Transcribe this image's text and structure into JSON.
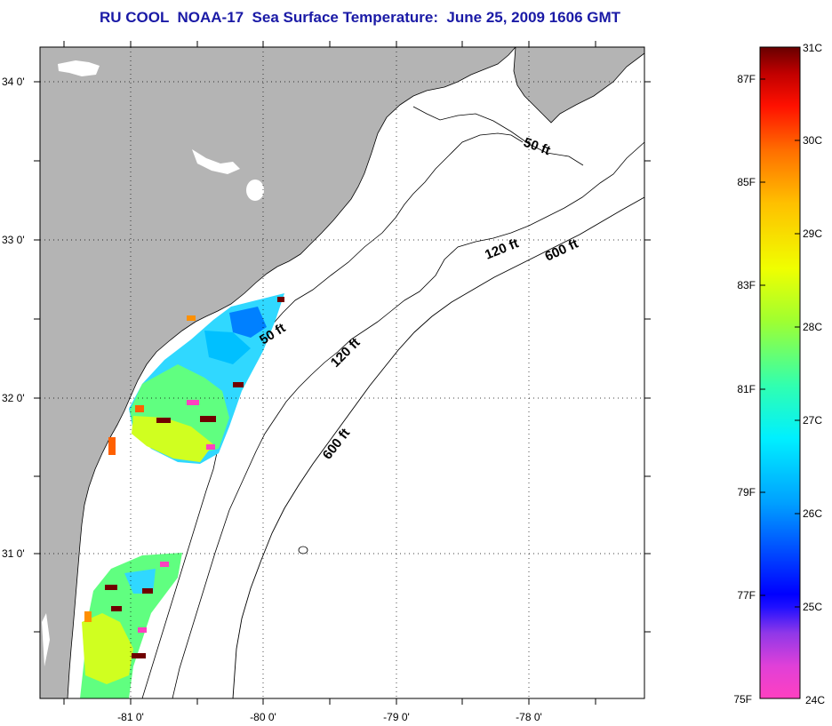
{
  "title": "RU COOL  NOAA-17  Sea Surface Temperature:  June 25, 2009 1606 GMT",
  "map": {
    "lon_labels": [
      "-81 0'",
      "-80 0'",
      "-79 0'",
      "-78 0'"
    ],
    "lat_labels": [
      "34 0'",
      "33 0'",
      "32 0'",
      "31 0'"
    ],
    "contours": [
      {
        "depth": "50 ft"
      },
      {
        "depth": "50 ft"
      },
      {
        "depth": "120 ft"
      },
      {
        "depth": "120 ft"
      },
      {
        "depth": "600 ft"
      },
      {
        "depth": "600 ft"
      }
    ],
    "land_color": "#b4b4b4",
    "ocean_color": "#ffffff",
    "grid": "dotted"
  },
  "colorbar": {
    "fahrenheit_labels": [
      "87F",
      "85F",
      "83F",
      "81F",
      "79F",
      "77F",
      "75F"
    ],
    "celsius_labels": [
      "31C",
      "30C",
      "29C",
      "28C",
      "27C",
      "26C",
      "25C",
      "24C"
    ],
    "colors": [
      "#ff40c0",
      "#d040e0",
      "#7030f0",
      "#0000ff",
      "#0060ff",
      "#00b0ff",
      "#00f0ff",
      "#20ffb0",
      "#80ff40",
      "#e0ff00",
      "#ffd000",
      "#ff9000",
      "#ff4000",
      "#e00000",
      "#700000"
    ]
  }
}
